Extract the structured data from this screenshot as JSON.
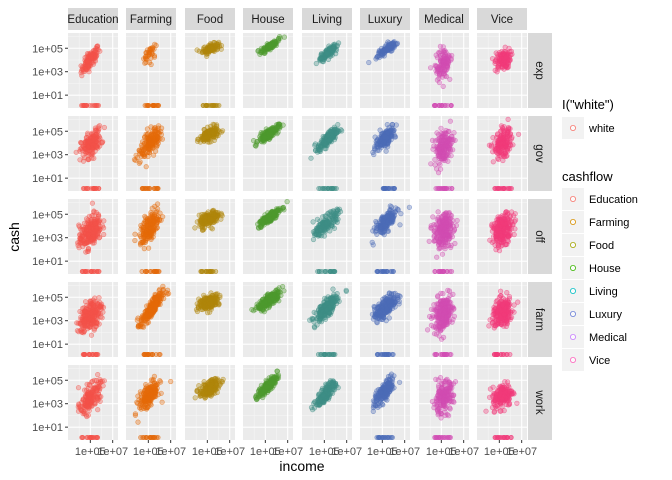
{
  "chart_data": {
    "type": "scatter",
    "facet_columns": [
      "Education",
      "Farming",
      "Food",
      "House",
      "Living",
      "Luxury",
      "Medical",
      "Vice"
    ],
    "facet_rows": [
      "exp",
      "gov",
      "off",
      "farm",
      "work"
    ],
    "xlabel": "income",
    "ylabel": "cash",
    "x_scale": "log10",
    "y_scale": "log10",
    "x_ticks": [
      "1e+05",
      "1e+07"
    ],
    "y_ticks": [
      "1e+01",
      "1e+03",
      "1e+05"
    ],
    "xlim": [
      1000,
      30000000
    ],
    "ylim": [
      0.8,
      2000000
    ],
    "grid": true,
    "legend_position": "right",
    "legends": [
      {
        "title": "I(\"white\")",
        "entries": [
          {
            "label": "white",
            "color": "#F8766D"
          }
        ]
      },
      {
        "title": "cashflow",
        "entries": [
          {
            "label": "Education",
            "color": "#F8766D"
          },
          {
            "label": "Farming",
            "color": "#D89000"
          },
          {
            "label": "Food",
            "color": "#A3A500"
          },
          {
            "label": "House",
            "color": "#39B600"
          },
          {
            "label": "Living",
            "color": "#00BFC4"
          },
          {
            "label": "Luxury",
            "color": "#6A7FD8"
          },
          {
            "label": "Medical",
            "color": "#C77CFF"
          },
          {
            "label": "Vice",
            "color": "#FF62BC"
          }
        ]
      }
    ],
    "series_fill": {
      "Education": "#F4524A",
      "Farming": "#E46A0A",
      "Food": "#B0860C",
      "House": "#4E9A2E",
      "Living": "#3E8E86",
      "Luxury": "#4C6CB8",
      "Medical": "#D24DB3",
      "Vice": "#F13B7A"
    },
    "clusters": [
      {
        "row": "exp",
        "col": "Education",
        "x_center": 100000,
        "y_center": 10000,
        "spread_x": 0.4,
        "spread_y": 0.55,
        "corr": 0.8,
        "density": "medium",
        "zero_band": true
      },
      {
        "row": "exp",
        "col": "Farming",
        "x_center": 150000,
        "y_center": 30000,
        "spread_x": 0.35,
        "spread_y": 0.5,
        "corr": 0.6,
        "density": "sparse",
        "zero_band": true
      },
      {
        "row": "exp",
        "col": "Food",
        "x_center": 200000,
        "y_center": 100000,
        "spread_x": 0.35,
        "spread_y": 0.2,
        "corr": 0.5,
        "density": "medium",
        "zero_band": true
      },
      {
        "row": "exp",
        "col": "House",
        "x_center": 250000,
        "y_center": 150000,
        "spread_x": 0.4,
        "spread_y": 0.3,
        "corr": 0.85,
        "density": "medium",
        "zero_band": false
      },
      {
        "row": "exp",
        "col": "Living",
        "x_center": 200000,
        "y_center": 40000,
        "spread_x": 0.4,
        "spread_y": 0.35,
        "corr": 0.8,
        "density": "medium",
        "zero_band": false
      },
      {
        "row": "exp",
        "col": "Luxury",
        "x_center": 250000,
        "y_center": 80000,
        "spread_x": 0.4,
        "spread_y": 0.3,
        "corr": 0.8,
        "density": "medium",
        "zero_band": false
      },
      {
        "row": "exp",
        "col": "Medical",
        "x_center": 150000,
        "y_center": 5000,
        "spread_x": 0.4,
        "spread_y": 0.7,
        "corr": 0.3,
        "density": "medium",
        "zero_band": true
      },
      {
        "row": "exp",
        "col": "Vice",
        "x_center": 200000,
        "y_center": 10000,
        "spread_x": 0.35,
        "spread_y": 0.45,
        "corr": 0.3,
        "density": "medium",
        "zero_band": false
      },
      {
        "row": "gov",
        "col": "Education",
        "x_center": 120000,
        "y_center": 8000,
        "spread_x": 0.45,
        "spread_y": 0.6,
        "corr": 0.5,
        "density": "dense",
        "zero_band": true
      },
      {
        "row": "gov",
        "col": "Farming",
        "x_center": 150000,
        "y_center": 12000,
        "spread_x": 0.45,
        "spread_y": 0.6,
        "corr": 0.6,
        "density": "dense",
        "zero_band": true
      },
      {
        "row": "gov",
        "col": "Food",
        "x_center": 150000,
        "y_center": 50000,
        "spread_x": 0.4,
        "spread_y": 0.3,
        "corr": 0.5,
        "density": "dense",
        "zero_band": false
      },
      {
        "row": "gov",
        "col": "House",
        "x_center": 200000,
        "y_center": 60000,
        "spread_x": 0.45,
        "spread_y": 0.35,
        "corr": 0.8,
        "density": "dense",
        "zero_band": false
      },
      {
        "row": "gov",
        "col": "Living",
        "x_center": 200000,
        "y_center": 20000,
        "spread_x": 0.45,
        "spread_y": 0.45,
        "corr": 0.8,
        "density": "dense",
        "zero_band": true
      },
      {
        "row": "gov",
        "col": "Luxury",
        "x_center": 200000,
        "y_center": 30000,
        "spread_x": 0.45,
        "spread_y": 0.5,
        "corr": 0.7,
        "density": "dense",
        "zero_band": true
      },
      {
        "row": "gov",
        "col": "Medical",
        "x_center": 150000,
        "y_center": 5000,
        "spread_x": 0.4,
        "spread_y": 0.7,
        "corr": 0.3,
        "density": "dense",
        "zero_band": true
      },
      {
        "row": "gov",
        "col": "Vice",
        "x_center": 200000,
        "y_center": 8000,
        "spread_x": 0.4,
        "spread_y": 0.6,
        "corr": 0.3,
        "density": "dense",
        "zero_band": true
      },
      {
        "row": "off",
        "col": "Education",
        "x_center": 100000,
        "y_center": 3000,
        "spread_x": 0.5,
        "spread_y": 0.75,
        "corr": 0.5,
        "density": "very-dense",
        "zero_band": true
      },
      {
        "row": "off",
        "col": "Farming",
        "x_center": 150000,
        "y_center": 8000,
        "spread_x": 0.45,
        "spread_y": 0.7,
        "corr": 0.6,
        "density": "dense",
        "zero_band": true
      },
      {
        "row": "off",
        "col": "Food",
        "x_center": 150000,
        "y_center": 40000,
        "spread_x": 0.45,
        "spread_y": 0.35,
        "corr": 0.5,
        "density": "dense",
        "zero_band": true
      },
      {
        "row": "off",
        "col": "House",
        "x_center": 200000,
        "y_center": 50000,
        "spread_x": 0.5,
        "spread_y": 0.4,
        "corr": 0.85,
        "density": "dense",
        "zero_band": false
      },
      {
        "row": "off",
        "col": "Living",
        "x_center": 150000,
        "y_center": 15000,
        "spread_x": 0.5,
        "spread_y": 0.5,
        "corr": 0.75,
        "density": "dense",
        "zero_band": true
      },
      {
        "row": "off",
        "col": "Luxury",
        "x_center": 200000,
        "y_center": 20000,
        "spread_x": 0.5,
        "spread_y": 0.55,
        "corr": 0.7,
        "density": "dense",
        "zero_band": true
      },
      {
        "row": "off",
        "col": "Medical",
        "x_center": 150000,
        "y_center": 4000,
        "spread_x": 0.45,
        "spread_y": 0.75,
        "corr": 0.3,
        "density": "very-dense",
        "zero_band": true
      },
      {
        "row": "off",
        "col": "Vice",
        "x_center": 200000,
        "y_center": 5000,
        "spread_x": 0.45,
        "spread_y": 0.65,
        "corr": 0.3,
        "density": "very-dense",
        "zero_band": false
      },
      {
        "row": "farm",
        "col": "Education",
        "x_center": 100000,
        "y_center": 3000,
        "spread_x": 0.5,
        "spread_y": 0.7,
        "corr": 0.5,
        "density": "very-dense",
        "zero_band": true
      },
      {
        "row": "farm",
        "col": "Farming",
        "x_center": 200000,
        "y_center": 10000,
        "spread_x": 0.5,
        "spread_y": 0.7,
        "corr": 0.85,
        "density": "very-dense",
        "zero_band": true
      },
      {
        "row": "farm",
        "col": "Food",
        "x_center": 150000,
        "y_center": 40000,
        "spread_x": 0.45,
        "spread_y": 0.3,
        "corr": 0.5,
        "density": "very-dense",
        "zero_band": false
      },
      {
        "row": "farm",
        "col": "House",
        "x_center": 200000,
        "y_center": 50000,
        "spread_x": 0.5,
        "spread_y": 0.4,
        "corr": 0.8,
        "density": "very-dense",
        "zero_band": false
      },
      {
        "row": "farm",
        "col": "Living",
        "x_center": 150000,
        "y_center": 10000,
        "spread_x": 0.5,
        "spread_y": 0.55,
        "corr": 0.75,
        "density": "very-dense",
        "zero_band": true
      },
      {
        "row": "farm",
        "col": "Luxury",
        "x_center": 200000,
        "y_center": 15000,
        "spread_x": 0.5,
        "spread_y": 0.55,
        "corr": 0.7,
        "density": "very-dense",
        "zero_band": true
      },
      {
        "row": "farm",
        "col": "Medical",
        "x_center": 150000,
        "y_center": 4000,
        "spread_x": 0.45,
        "spread_y": 0.75,
        "corr": 0.3,
        "density": "very-dense",
        "zero_band": true
      },
      {
        "row": "farm",
        "col": "Vice",
        "x_center": 200000,
        "y_center": 5000,
        "spread_x": 0.45,
        "spread_y": 0.6,
        "corr": 0.3,
        "density": "very-dense",
        "zero_band": true
      },
      {
        "row": "work",
        "col": "Education",
        "x_center": 100000,
        "y_center": 3000,
        "spread_x": 0.45,
        "spread_y": 0.65,
        "corr": 0.55,
        "density": "dense",
        "zero_band": true
      },
      {
        "row": "work",
        "col": "Farming",
        "x_center": 120000,
        "y_center": 5000,
        "spread_x": 0.45,
        "spread_y": 0.65,
        "corr": 0.6,
        "density": "dense",
        "zero_band": true
      },
      {
        "row": "work",
        "col": "Food",
        "x_center": 150000,
        "y_center": 20000,
        "spread_x": 0.45,
        "spread_y": 0.4,
        "corr": 0.6,
        "density": "dense",
        "zero_band": false
      },
      {
        "row": "work",
        "col": "House",
        "x_center": 150000,
        "y_center": 30000,
        "spread_x": 0.45,
        "spread_y": 0.45,
        "corr": 0.85,
        "density": "dense",
        "zero_band": false
      },
      {
        "row": "work",
        "col": "Living",
        "x_center": 150000,
        "y_center": 8000,
        "spread_x": 0.45,
        "spread_y": 0.55,
        "corr": 0.8,
        "density": "dense",
        "zero_band": false
      },
      {
        "row": "work",
        "col": "Luxury",
        "x_center": 150000,
        "y_center": 10000,
        "spread_x": 0.45,
        "spread_y": 0.6,
        "corr": 0.75,
        "density": "dense",
        "zero_band": true
      },
      {
        "row": "work",
        "col": "Medical",
        "x_center": 150000,
        "y_center": 3000,
        "spread_x": 0.45,
        "spread_y": 0.7,
        "corr": 0.3,
        "density": "dense",
        "zero_band": true
      },
      {
        "row": "work",
        "col": "Vice",
        "x_center": 200000,
        "y_center": 5000,
        "spread_x": 0.45,
        "spread_y": 0.55,
        "corr": 0.3,
        "density": "dense",
        "zero_band": true
      }
    ]
  }
}
